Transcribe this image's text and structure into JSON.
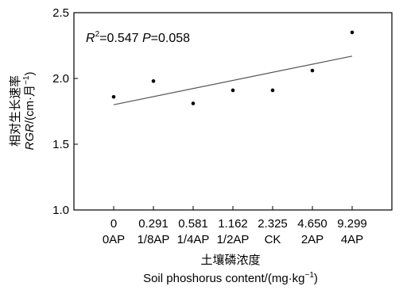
{
  "chart_data": {
    "type": "scatter",
    "categories": [
      "0",
      "0.291",
      "0.581",
      "1.162",
      "2.325",
      "4.650",
      "9.299"
    ],
    "category_sublabels": [
      "0AP",
      "1/8AP",
      "1/4AP",
      "1/2AP",
      "CK",
      "2AP",
      "4AP"
    ],
    "values": [
      1.86,
      1.98,
      1.81,
      1.91,
      1.91,
      2.06,
      2.35
    ],
    "trendline": {
      "start": 1.8,
      "end": 2.17
    },
    "annotation": {
      "r_symbol": "R",
      "r_exp": "2",
      "r_value": "=0.547 ",
      "p_symbol": "P",
      "p_value": "=0.058"
    },
    "ylim": [
      1.0,
      2.5
    ],
    "yticks": [
      "1.0",
      "1.5",
      "2.0",
      "2.5"
    ],
    "ylabel_zh": "相对生长速率",
    "ylabel_en_italic": "RGR",
    "ylabel_en_rest": "/(cm·月",
    "ylabel_en_sup": "−1",
    "ylabel_en_close": ")",
    "xlabel_zh": "土壤磷浓度",
    "xlabel_en_main": "Soil phoshorus content/(mg·kg",
    "xlabel_en_sup": "−1",
    "xlabel_en_close": ")",
    "grid": false
  }
}
